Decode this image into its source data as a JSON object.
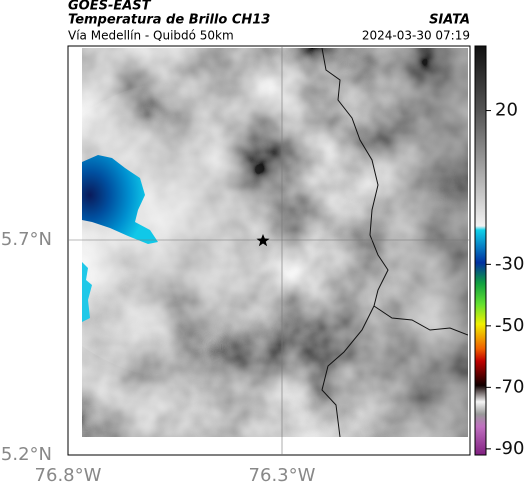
{
  "header": {
    "satellite": "GOES-EAST",
    "product": "Temperatura de Brillo CH13",
    "route": "Vía Medellín - Quibdó 50km",
    "agency": "SIATA",
    "datetime": "2024-03-30 07:19"
  },
  "map": {
    "lat_labels": [
      "5.7°N",
      "5.2°N"
    ],
    "lon_labels": [
      "76.8°W",
      "76.3°W"
    ]
  },
  "colorbar": {
    "lim": [
      41,
      -92
    ],
    "ticks": [
      20,
      -30,
      -50,
      -70,
      -90
    ]
  }
}
